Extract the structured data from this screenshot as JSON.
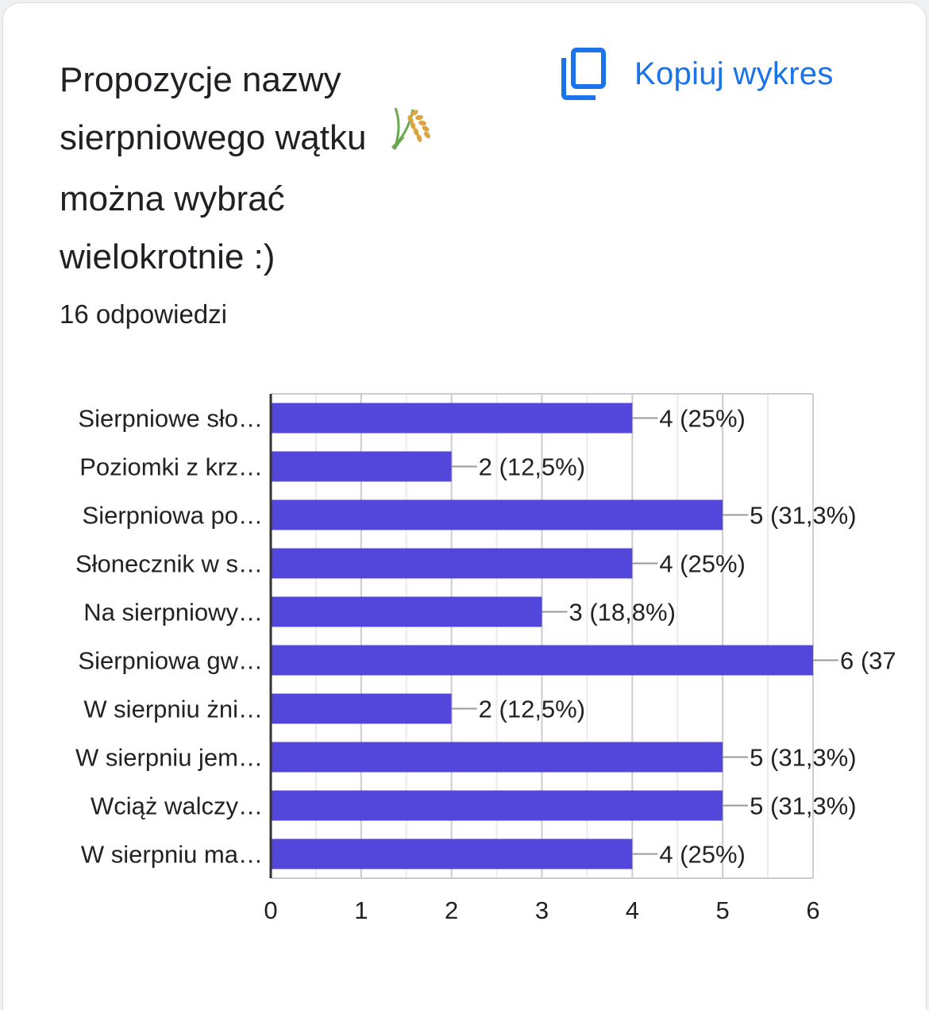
{
  "header": {
    "title": "Propozycje nazwy sierpniowego wątku",
    "title_emoji": "🌾",
    "title_line3": "można wybrać",
    "title_line4": "wielokrotnie :)",
    "copy_label": "Kopiuj wykres",
    "copy_icon": "copy-icon",
    "responses": "16 odpowiedzi"
  },
  "colors": {
    "bar": "#5246db",
    "accent": "#1a73e8"
  },
  "chart_data": {
    "type": "bar",
    "orientation": "horizontal",
    "categories": [
      "Sierpniowe sło…",
      "Poziomki z krz…",
      "Sierpniowa po…",
      "Słonecznik w s…",
      "Na sierpniowy…",
      "Sierpniowa gw…",
      "W sierpniu żni…",
      "W sierpniu jem…",
      "Wciąż walczy…",
      "W sierpniu ma…"
    ],
    "values": [
      4,
      2,
      5,
      4,
      3,
      6,
      2,
      5,
      5,
      4
    ],
    "value_labels": [
      "4 (25%)",
      "2 (12,5%)",
      "5 (31,3%)",
      "4 (25%)",
      "3 (18,8%)",
      "6 (37",
      "2 (12,5%)",
      "5 (31,3%)",
      "5 (31,3%)",
      "4 (25%)"
    ],
    "x_ticks": [
      "0",
      "1",
      "2",
      "3",
      "4",
      "5",
      "6"
    ],
    "xlim": [
      0,
      6
    ],
    "grid": true,
    "legend": "none"
  }
}
